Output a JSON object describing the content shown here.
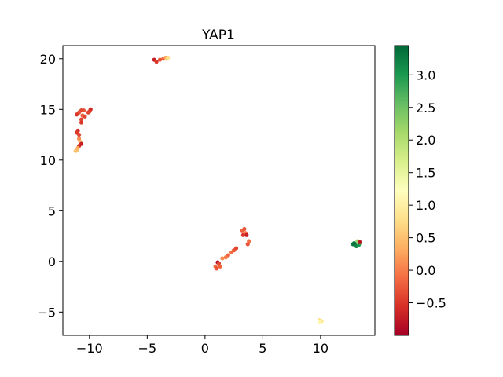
{
  "chart_data": {
    "type": "scatter",
    "title": "YAP1",
    "xlabel": "",
    "ylabel": "",
    "xlim": [
      -12.3,
      14.7
    ],
    "ylim": [
      -7.3,
      21.3
    ],
    "xticks": [
      -10,
      -5,
      0,
      5,
      10
    ],
    "yticks": [
      -5,
      0,
      5,
      10,
      15,
      20
    ],
    "xtick_labels": [
      "−10",
      "−5",
      "0",
      "5",
      "10"
    ],
    "ytick_labels": [
      "−5",
      "0",
      "5",
      "10",
      "15",
      "20"
    ],
    "grid": false,
    "legend": "none",
    "colorbar": {
      "colormap": "RdYlGn",
      "range": [
        -1.0,
        3.45
      ],
      "ticks": [
        -0.5,
        0.0,
        0.5,
        1.0,
        1.5,
        2.0,
        2.5,
        3.0
      ],
      "tick_labels": [
        "−0.5",
        "0.0",
        "0.5",
        "1.0",
        "1.5",
        "2.0",
        "2.5",
        "3.0"
      ]
    },
    "points": [
      {
        "x": -4.4,
        "y": 19.9,
        "v": -0.7
      },
      {
        "x": -4.2,
        "y": 19.7,
        "v": -0.5
      },
      {
        "x": -3.9,
        "y": 19.9,
        "v": -0.3
      },
      {
        "x": -3.6,
        "y": 20.0,
        "v": -0.2
      },
      {
        "x": -3.4,
        "y": 20.1,
        "v": 0.2
      },
      {
        "x": -3.3,
        "y": 20.0,
        "v": 0.5
      },
      {
        "x": -3.2,
        "y": 20.1,
        "v": 0.8
      },
      {
        "x": -9.9,
        "y": 15.0,
        "v": -0.6
      },
      {
        "x": -10.0,
        "y": 14.8,
        "v": -0.5
      },
      {
        "x": -10.1,
        "y": 14.7,
        "v": -0.4
      },
      {
        "x": -10.5,
        "y": 14.9,
        "v": -0.3
      },
      {
        "x": -10.7,
        "y": 14.9,
        "v": -0.4
      },
      {
        "x": -10.9,
        "y": 14.7,
        "v": -0.3
      },
      {
        "x": -11.1,
        "y": 14.5,
        "v": -0.5
      },
      {
        "x": -10.6,
        "y": 14.4,
        "v": -0.2
      },
      {
        "x": -10.4,
        "y": 14.3,
        "v": -0.4
      },
      {
        "x": -10.7,
        "y": 14.0,
        "v": -0.4
      },
      {
        "x": -10.7,
        "y": 13.7,
        "v": -0.5
      },
      {
        "x": -11.0,
        "y": 12.9,
        "v": -0.6
      },
      {
        "x": -11.1,
        "y": 12.7,
        "v": -0.5
      },
      {
        "x": -10.9,
        "y": 12.5,
        "v": -0.4
      },
      {
        "x": -10.9,
        "y": 12.1,
        "v": 0.1
      },
      {
        "x": -10.8,
        "y": 11.8,
        "v": 0.4
      },
      {
        "x": -10.7,
        "y": 11.6,
        "v": -0.7
      },
      {
        "x": -10.9,
        "y": 11.4,
        "v": -0.6
      },
      {
        "x": -11.0,
        "y": 11.2,
        "v": 0.3
      },
      {
        "x": -11.1,
        "y": 11.0,
        "v": 0.4
      },
      {
        "x": -11.2,
        "y": 10.9,
        "v": 0.5
      },
      {
        "x": 3.4,
        "y": 3.2,
        "v": -0.3
      },
      {
        "x": 3.2,
        "y": 3.0,
        "v": -0.2
      },
      {
        "x": 3.5,
        "y": 2.8,
        "v": 0.0
      },
      {
        "x": 3.6,
        "y": 2.6,
        "v": -0.7
      },
      {
        "x": 3.3,
        "y": 2.6,
        "v": -0.5
      },
      {
        "x": 3.8,
        "y": 2.0,
        "v": -0.1
      },
      {
        "x": 3.7,
        "y": 1.7,
        "v": -0.3
      },
      {
        "x": 2.7,
        "y": 1.3,
        "v": -0.4
      },
      {
        "x": 2.5,
        "y": 1.1,
        "v": -0.3
      },
      {
        "x": 2.3,
        "y": 0.9,
        "v": -0.1
      },
      {
        "x": 2.0,
        "y": 0.6,
        "v": -0.2
      },
      {
        "x": 1.8,
        "y": 0.4,
        "v": 0.0
      },
      {
        "x": 1.5,
        "y": 0.3,
        "v": 0.1
      },
      {
        "x": 1.1,
        "y": -0.1,
        "v": -0.9
      },
      {
        "x": 1.2,
        "y": -0.2,
        "v": -0.4
      },
      {
        "x": 1.3,
        "y": -0.5,
        "v": -0.2
      },
      {
        "x": 0.9,
        "y": -0.5,
        "v": -0.1
      },
      {
        "x": 1.0,
        "y": -0.7,
        "v": -0.3
      },
      {
        "x": 10.0,
        "y": -5.9,
        "v": 1.0
      },
      {
        "x": 9.9,
        "y": -5.8,
        "v": 0.8
      },
      {
        "x": 10.1,
        "y": -5.9,
        "v": 0.9
      },
      {
        "x": 9.9,
        "y": -6.0,
        "v": 1.1
      },
      {
        "x": 12.9,
        "y": 1.8,
        "v": 3.3
      },
      {
        "x": 13.0,
        "y": 1.6,
        "v": 3.4
      },
      {
        "x": 12.8,
        "y": 1.7,
        "v": 3.3
      },
      {
        "x": 13.1,
        "y": 1.5,
        "v": 3.2
      },
      {
        "x": 13.2,
        "y": 2.0,
        "v": 2.2
      },
      {
        "x": 13.4,
        "y": 1.8,
        "v": 2.6
      },
      {
        "x": 13.3,
        "y": 1.6,
        "v": 3.0
      },
      {
        "x": 13.4,
        "y": 1.9,
        "v": -0.8
      }
    ]
  }
}
